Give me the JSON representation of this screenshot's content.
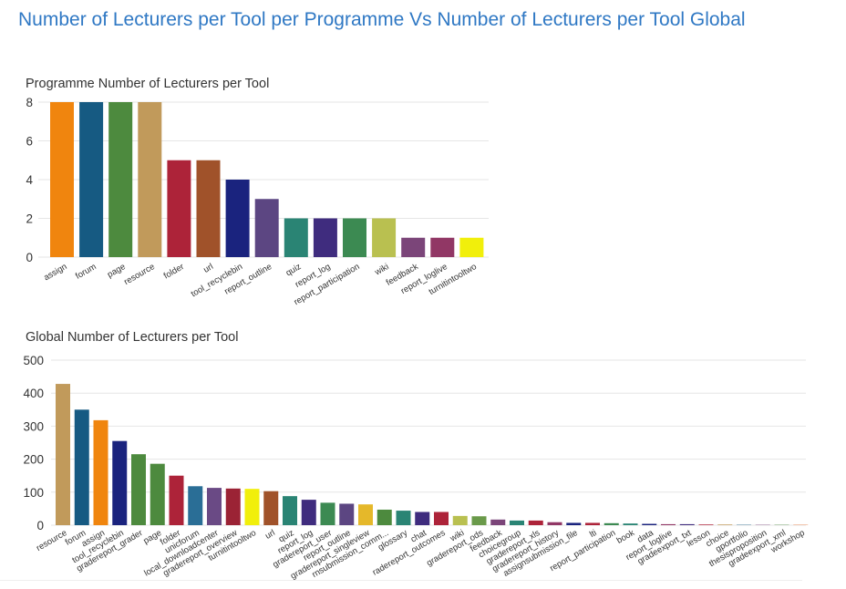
{
  "page": {
    "title": "Number of Lecturers per Tool per Programme Vs Number of Lecturers per Tool Global"
  },
  "chart_data": [
    {
      "type": "bar",
      "title": "Programme Number of Lecturers per Tool",
      "xlabel": "",
      "ylabel": "",
      "ylim": [
        0,
        8
      ],
      "yticks": [
        0,
        2,
        4,
        6,
        8
      ],
      "grid": true,
      "categories": [
        "assign",
        "forum",
        "page",
        "resource",
        "folder",
        "url",
        "tool_recyclebin",
        "report_outline",
        "quiz",
        "report_log",
        "report_participation",
        "wiki",
        "feedback",
        "report_loglive",
        "turnitintooltwo"
      ],
      "values": [
        8,
        8,
        8,
        8,
        5,
        5,
        4,
        3,
        2,
        2,
        2,
        2,
        1,
        1,
        1
      ],
      "colors": [
        "#f0850e",
        "#165a82",
        "#4d8a3e",
        "#c19a5b",
        "#ad2339",
        "#a0522a",
        "#1a237e",
        "#5c4682",
        "#2a8474",
        "#3f2c7e",
        "#3c8a52",
        "#b9c050",
        "#7b4579",
        "#913765",
        "#f1ef0b"
      ]
    },
    {
      "type": "bar",
      "title": "Global Number of Lecturers per Tool",
      "xlabel": "",
      "ylabel": "",
      "ylim": [
        0,
        500
      ],
      "yticks": [
        0,
        100,
        200,
        300,
        400,
        500
      ],
      "grid": true,
      "categories": [
        "resource",
        "forum",
        "assign",
        "tool_recyclebin",
        "gradereport_grader",
        "page",
        "folder",
        "unicforum",
        "local_downloadcenter",
        "gradereport_overview",
        "turnitintooltwo",
        "url",
        "quiz",
        "report_log",
        "gradereport_user",
        "report_outline",
        "gradereport_singleview",
        "rnsubmission_comm...",
        "glossary",
        "chat",
        "radereport_outcomes",
        "wiki",
        "gradereport_ods",
        "feedback",
        "choicegroup",
        "gradereport_xls",
        "gradereport_history",
        "assignsubmission_file",
        "lti",
        "report_participation",
        "book",
        "data",
        "report_loglive",
        "gradeexport_txt",
        "lesson",
        "choice",
        "gportfolio",
        "thesisproposition",
        "gradeexport_xml",
        "workshop"
      ],
      "values": [
        428,
        350,
        318,
        255,
        215,
        186,
        150,
        118,
        113,
        111,
        110,
        103,
        88,
        77,
        68,
        65,
        63,
        47,
        44,
        40,
        40,
        28,
        27,
        17,
        14,
        14,
        9,
        7,
        7,
        6,
        5,
        4,
        3,
        3,
        2,
        2,
        1,
        1,
        1,
        1
      ],
      "colors": [
        "#c19a5b",
        "#165a82",
        "#f0850e",
        "#1a237e",
        "#4d8a3e",
        "#4d8a3e",
        "#ad2339",
        "#2a6e96",
        "#6a4a85",
        "#9b2335",
        "#f1ef0b",
        "#a0522a",
        "#2a8474",
        "#3f2c7e",
        "#3c8a52",
        "#5c4682",
        "#e5b82a",
        "#4d8a3e",
        "#2a8474",
        "#3f2c7e",
        "#ad2339",
        "#b9c050",
        "#6a9a4a",
        "#7b4579",
        "#2a8474",
        "#ad2339",
        "#913765",
        "#1a237e",
        "#ad2339",
        "#3c8a52",
        "#2a8474",
        "#1a237e",
        "#913765",
        "#3f2c7e",
        "#ad2339",
        "#c19a5b",
        "#165a82",
        "#7b4579",
        "#4d8a3e",
        "#e36b2a"
      ]
    }
  ]
}
